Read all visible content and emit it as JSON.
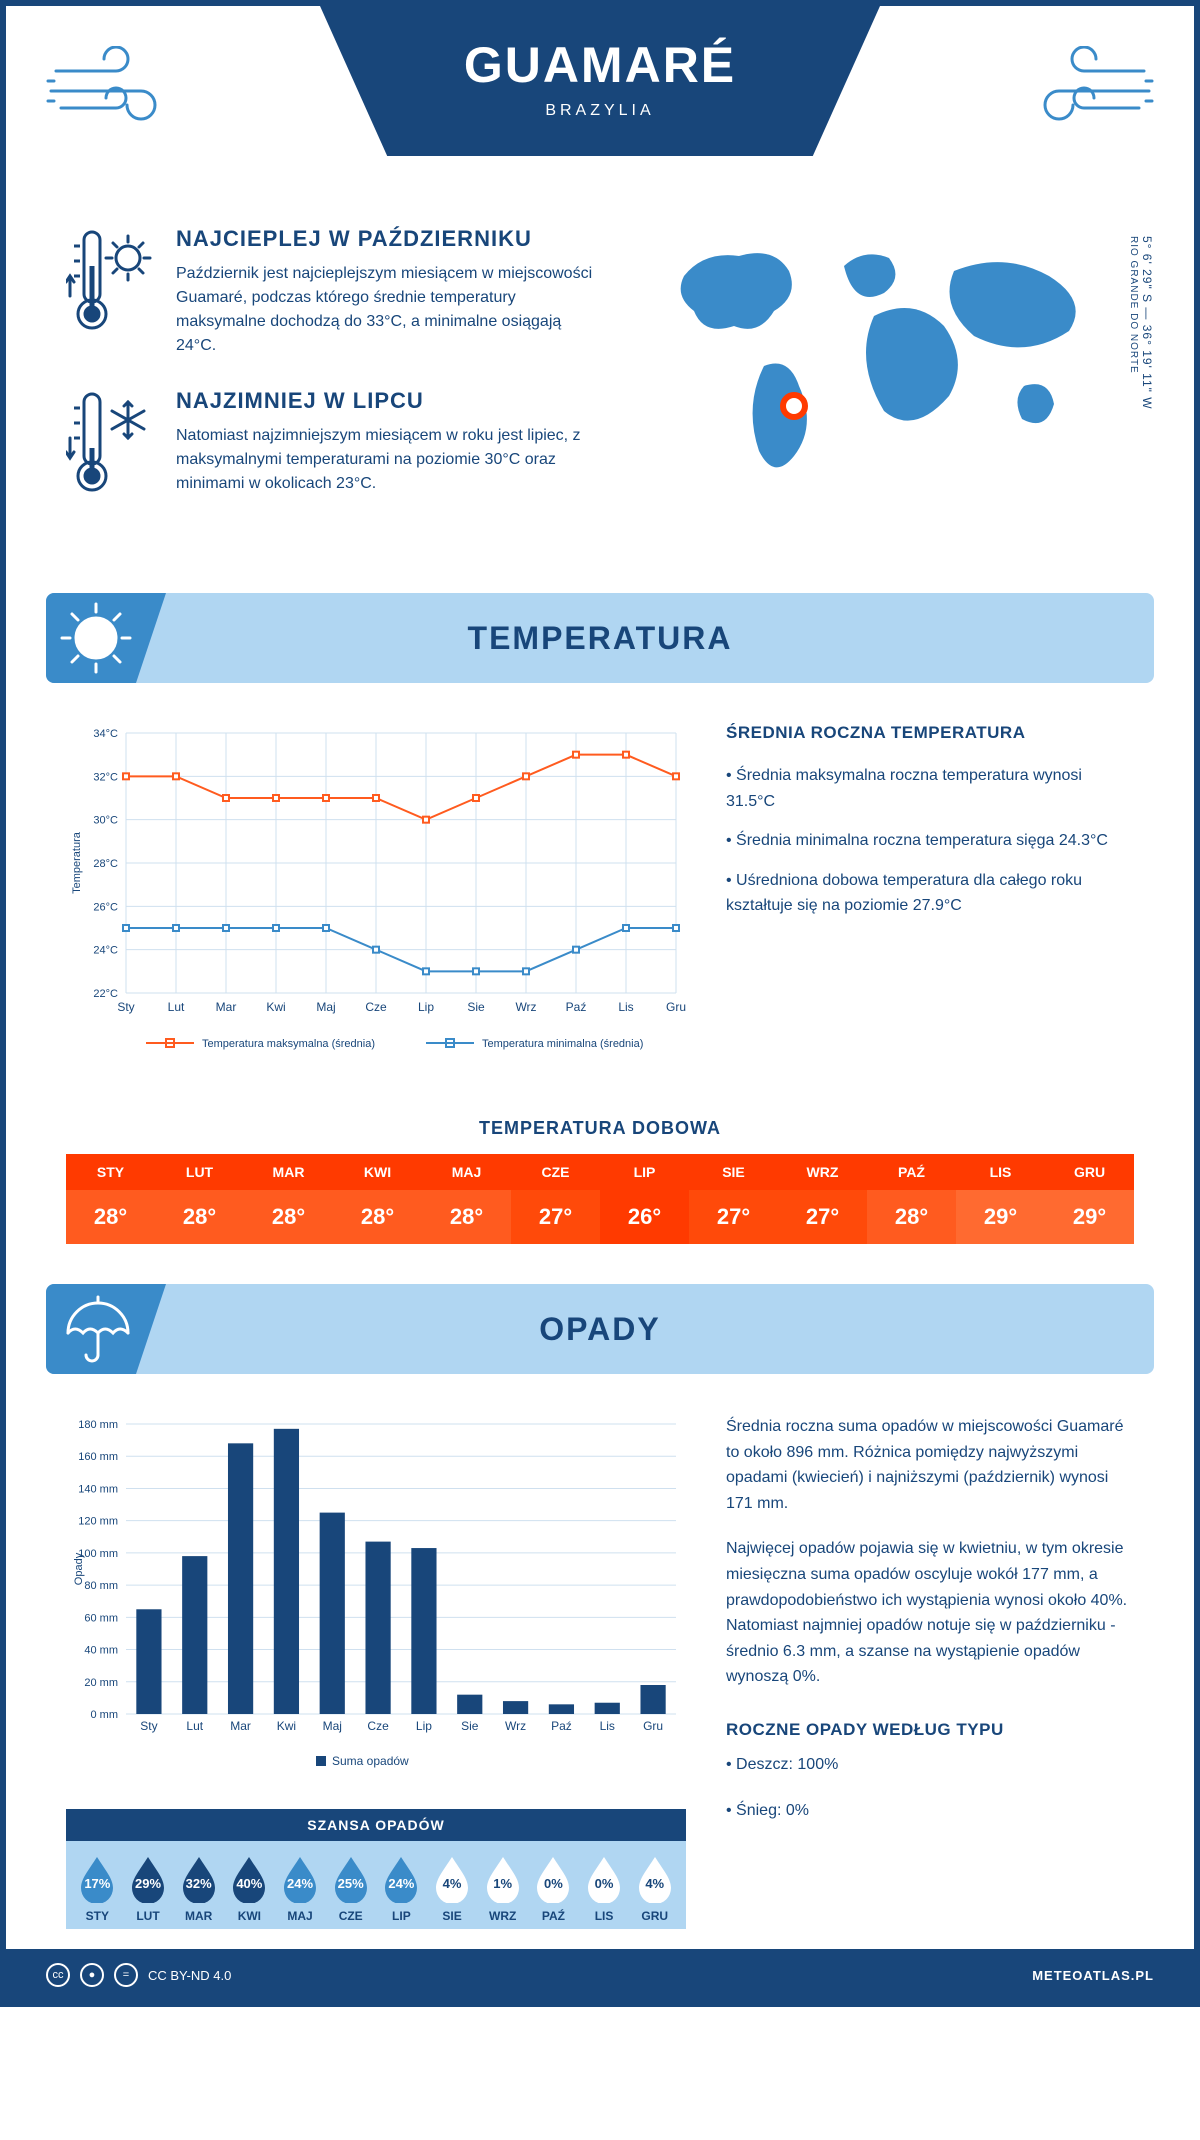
{
  "header": {
    "city": "GUAMARÉ",
    "country": "BRAZYLIA"
  },
  "coords": {
    "lat": "5° 6' 29\" S — 36° 19' 11\" W",
    "region": "RIO GRANDE DO NORTE"
  },
  "facts": {
    "hot": {
      "title": "NAJCIEPLEJ W PAŹDZIERNIKU",
      "text": "Październik jest najcieplejszym miesiącem w miejscowości Guamaré, podczas którego średnie temperatury maksymalne dochodzą do 33°C, a minimalne osiągają 24°C."
    },
    "cold": {
      "title": "NAJZIMNIEJ W LIPCU",
      "text": "Natomiast najzimniejszym miesiącem w roku jest lipiec, z maksymalnymi temperaturami na poziomie 30°C oraz minimami w okolicach 23°C."
    }
  },
  "sections": {
    "temp": "TEMPERATURA",
    "rain": "OPADY"
  },
  "months": [
    "Sty",
    "Lut",
    "Mar",
    "Kwi",
    "Maj",
    "Cze",
    "Lip",
    "Sie",
    "Wrz",
    "Paź",
    "Lis",
    "Gru"
  ],
  "months_upper": [
    "STY",
    "LUT",
    "MAR",
    "KWI",
    "MAJ",
    "CZE",
    "LIP",
    "SIE",
    "WRZ",
    "PAŹ",
    "LIS",
    "GRU"
  ],
  "temp_chart": {
    "type": "line",
    "ylabel": "Temperatura",
    "ylim": [
      22,
      34
    ],
    "ytick_step": 2,
    "max_series": {
      "label": "Temperatura maksymalna (średnia)",
      "color": "#ff5b1f",
      "values": [
        32,
        32,
        31,
        31,
        31,
        31,
        30,
        31,
        32,
        33,
        33,
        32
      ]
    },
    "min_series": {
      "label": "Temperatura minimalna (średnia)",
      "color": "#3a8bc9",
      "values": [
        25,
        25,
        25,
        25,
        25,
        24,
        23,
        23,
        23,
        24,
        25,
        25
      ]
    },
    "grid_color": "#cfe0ef",
    "bg": "#ffffff",
    "label_fontsize": 12
  },
  "temp_text": {
    "heading": "ŚREDNIA ROCZNA TEMPERATURA",
    "b1": "• Średnia maksymalna roczna temperatura wynosi 31.5°C",
    "b2": "• Średnia minimalna roczna temperatura sięga 24.3°C",
    "b3": "• Uśredniona dobowa temperatura dla całego roku kształtuje się na poziomie 27.9°C"
  },
  "daily": {
    "title": "TEMPERATURA DOBOWA",
    "values": [
      "28°",
      "28°",
      "28°",
      "28°",
      "28°",
      "27°",
      "26°",
      "27°",
      "27°",
      "28°",
      "29°",
      "29°"
    ],
    "colors": [
      "#ff5b1f",
      "#ff5b1f",
      "#ff5b1f",
      "#ff5b1f",
      "#ff5b1f",
      "#ff4a0a",
      "#ff3a00",
      "#ff4a0a",
      "#ff4a0a",
      "#ff5b1f",
      "#ff6a30",
      "#ff6a30"
    ],
    "head_color": "#ff3a00"
  },
  "rain_chart": {
    "type": "bar",
    "ylabel": "Opady",
    "legend": "Suma opadów",
    "ylim": [
      0,
      180
    ],
    "ytick_step": 20,
    "values": [
      65,
      98,
      168,
      177,
      125,
      107,
      103,
      12,
      8,
      6,
      7,
      18
    ],
    "bar_color": "#18467a",
    "grid_color": "#cfe0ef",
    "label_fontsize": 12
  },
  "rain_text": {
    "p1": "Średnia roczna suma opadów w miejscowości Guamaré to około 896 mm. Różnica pomiędzy najwyższymi opadami (kwiecień) i najniższymi (październik) wynosi 171 mm.",
    "p2": "Najwięcej opadów pojawia się w kwietniu, w tym okresie miesięczna suma opadów oscyluje wokół 177 mm, a prawdopodobieństwo ich wystąpienia wynosi około 40%. Natomiast najmniej opadów notuje się w październiku - średnio 6.3 mm, a szanse na wystąpienie opadów wynoszą 0%.",
    "heading": "ROCZNE OPADY WEDŁUG TYPU",
    "b1": "• Deszcz: 100%",
    "b2": "• Śnieg: 0%"
  },
  "chance": {
    "title": "SZANSA OPADÓW",
    "values": [
      17,
      29,
      32,
      40,
      24,
      25,
      24,
      4,
      1,
      0,
      0,
      4
    ],
    "dark": "#18467a",
    "mid": "#3a8bc9",
    "light": "#ffffff",
    "text_dark": "#18467a",
    "text_light": "#ffffff"
  },
  "footer": {
    "license": "CC BY-ND 4.0",
    "site": "METEOATLAS.PL"
  },
  "palette": {
    "primary": "#18467a",
    "accent": "#3a8bc9",
    "lightblue": "#b0d6f2",
    "orange": "#ff5b1f"
  }
}
